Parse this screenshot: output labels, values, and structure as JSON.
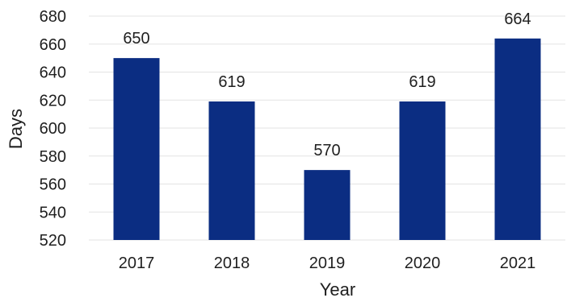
{
  "chart_data": {
    "type": "bar",
    "categories": [
      "2017",
      "2018",
      "2019",
      "2020",
      "2021"
    ],
    "values": [
      650,
      619,
      570,
      619,
      664
    ],
    "data_labels": [
      "650",
      "619",
      "570",
      "619",
      "664"
    ],
    "xlabel": "Year",
    "ylabel": "Days",
    "ylim": [
      520,
      680
    ],
    "yticks": [
      520,
      540,
      560,
      580,
      600,
      620,
      640,
      660,
      680
    ],
    "ytick_labels": [
      "520",
      "540",
      "560",
      "580",
      "600",
      "620",
      "640",
      "660",
      "680"
    ],
    "grid": true,
    "legend": "none",
    "bar_color": "#0b2d82"
  }
}
